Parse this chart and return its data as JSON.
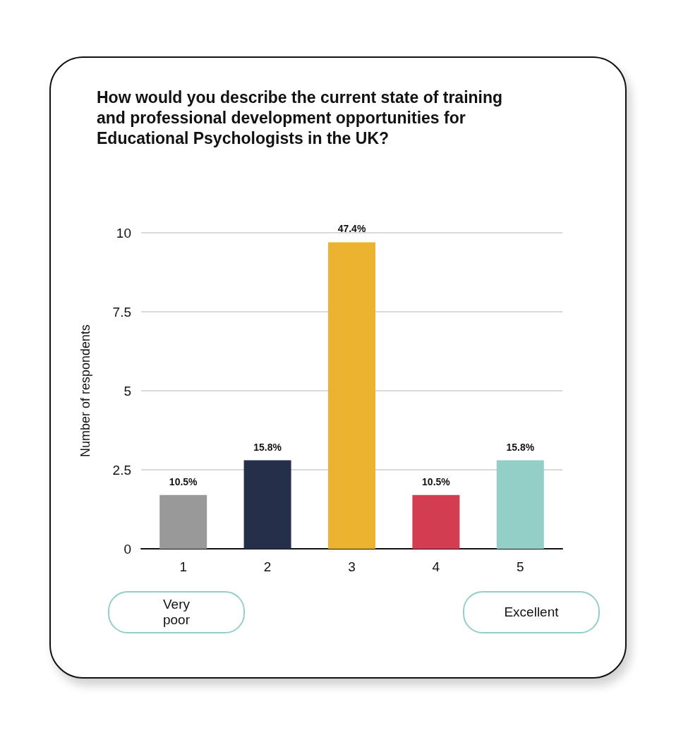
{
  "chart_data": {
    "type": "bar",
    "title": "How would you describe the current state of training and professional development opportunities for Educational Psychologists in the UK?",
    "ylabel": "Number of respondents",
    "categories": [
      "1",
      "2",
      "3",
      "4",
      "5"
    ],
    "values": [
      1.7,
      2.8,
      9.7,
      1.7,
      2.8
    ],
    "colors": [
      "#999999",
      "#252f4a",
      "#ecb331",
      "#d33d52",
      "#93cfc7"
    ],
    "ylim": [
      0,
      10
    ],
    "yticks": [
      0,
      2.5,
      5,
      7.5,
      10
    ],
    "grid": "y",
    "annotations": [
      {
        "text": "10.5%",
        "x": "1",
        "y": 1.7
      },
      {
        "text": "15.8%",
        "x": "2",
        "y": 2.8
      },
      {
        "text": "47.4%",
        "x": "3",
        "y": 9.7
      },
      {
        "text": "10.5%",
        "x": "4",
        "y": 1.7
      },
      {
        "text": "15.8%",
        "x": "5",
        "y": 2.8
      },
      "Very poor",
      "Excellent"
    ]
  }
}
